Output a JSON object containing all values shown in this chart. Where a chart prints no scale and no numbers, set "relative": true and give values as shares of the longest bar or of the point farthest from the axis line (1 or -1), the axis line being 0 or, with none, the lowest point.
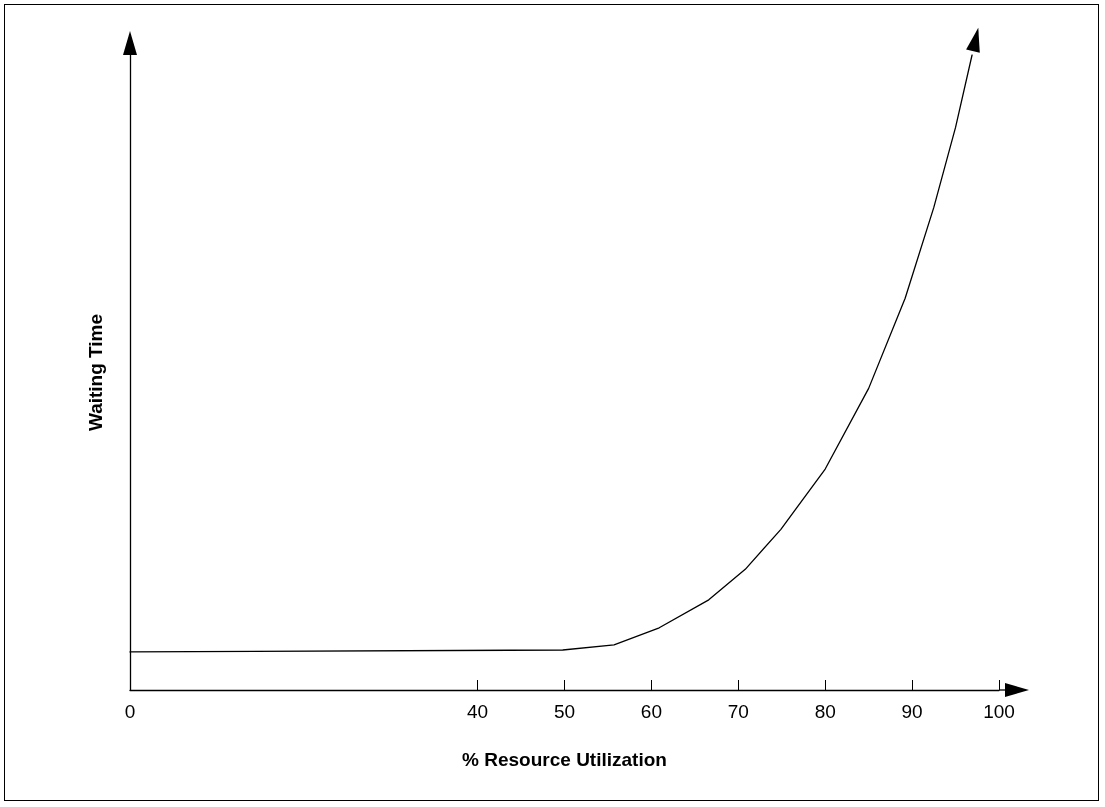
{
  "chart_data": {
    "type": "line",
    "xlabel": "% Resource Utilization",
    "ylabel": "Waiting Time",
    "relative": true,
    "xlim": [
      0,
      100
    ],
    "xticks": [
      0,
      40,
      50,
      60,
      70,
      80,
      90,
      100
    ],
    "x": [
      0,
      49.8,
      55.7,
      60.9,
      66.6,
      70.8,
      74.9,
      80.0,
      85.0,
      89.2,
      92.5,
      95.0,
      96.9
    ],
    "series": [
      {
        "color": "#000000",
        "values": [
          0.06,
          0.063,
          0.071,
          0.098,
          0.142,
          0.19,
          0.253,
          0.348,
          0.475,
          0.617,
          0.76,
          0.886,
          1.0
        ]
      }
    ],
    "grid": false,
    "marker": "none",
    "line_style": "solid"
  }
}
